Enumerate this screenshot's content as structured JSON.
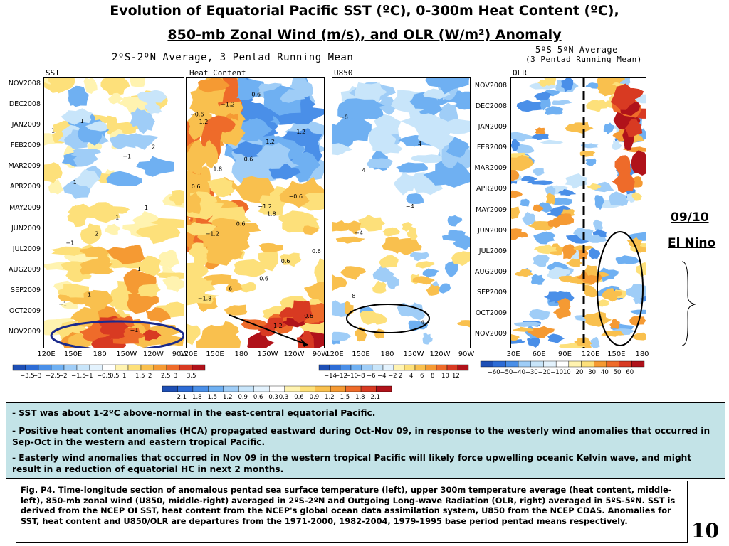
{
  "slide": {
    "title_line1": "Evolution of Equatorial Pacific SST (ºC), 0-300m Heat Content (ºC),",
    "title_line2": "850-mb Zonal Wind (m/s), and OLR (W/m²) Anomaly",
    "page_number": "10"
  },
  "left_subtitle": "2ºS-2ºN Average, 3 Pentad Running Mean",
  "right_subtitle_line1": "5ºS-5ºN Average",
  "right_subtitle_line2": "(3 Pentad Running Mean)",
  "el_nino_year": "09/10",
  "el_nino_label": "El Nino",
  "chart_data": [
    {
      "type": "heatmap",
      "title": "SST",
      "y_ticks": [
        "NOV2008",
        "DEC2008",
        "JAN2009",
        "FEB2009",
        "MAR2009",
        "APR2009",
        "MAY2009",
        "JUN2009",
        "JUL2009",
        "AUG2009",
        "SEP2009",
        "OCT2009",
        "NOV2009"
      ],
      "x_ticks": [
        "120E",
        "150E",
        "180",
        "150W",
        "120W",
        "90W"
      ],
      "colorbar": [
        "−3.5",
        "−3",
        "−2.5",
        "−2",
        "−1.5",
        "−1",
        "−0.5",
        "0.5",
        "1",
        "1.5",
        "2",
        "2.5",
        "3",
        "3.5"
      ],
      "contour_labels": [
        "1",
        "1",
        "−1",
        "−1",
        "−1",
        "−1",
        "1",
        "1",
        "1",
        "1",
        "1",
        "2",
        "2"
      ],
      "colors": [
        "#1e4fb5",
        "#2d6cd6",
        "#4a8fe8",
        "#6fb0f2",
        "#9fcdf7",
        "#c8e5fa",
        "#e3f2fd",
        "#ffffff",
        "#fff3b0",
        "#fde07a",
        "#f9c04e",
        "#f59a33",
        "#ee6b2a",
        "#d83a22",
        "#b0121a"
      ]
    },
    {
      "type": "heatmap",
      "title": "Heat Content",
      "x_ticks": [
        "120E",
        "150E",
        "180",
        "150W",
        "120W",
        "90W"
      ],
      "colorbar": [
        "−2.1",
        "−1.8",
        "−1.5",
        "−1.2",
        "−0.9",
        "−0.6",
        "−0.3",
        "0.3",
        "0.6",
        "0.9",
        "1.2",
        "1.5",
        "1.8",
        "2.1"
      ],
      "contour_labels": [
        "−0.6",
        "−1.2",
        "−1.8",
        "1.2",
        "−1.2",
        "1.2",
        "1.8",
        "0.6",
        "−1.2",
        "−0.6",
        "6",
        "1.2",
        "0.6",
        "0.6",
        "0.6",
        "0.6",
        "0.6",
        "0.6",
        "0.6",
        "1.2",
        "1.8"
      ]
    },
    {
      "type": "heatmap",
      "title": "U850",
      "x_ticks": [
        "120E",
        "150E",
        "180",
        "150W",
        "120W",
        "90W"
      ],
      "colorbar": [
        "−14",
        "−12",
        "−10",
        "−8",
        "−6",
        "−4",
        "−2",
        "2",
        "4",
        "6",
        "8",
        "10",
        "12"
      ],
      "contour_labels": [
        "−8",
        "−4",
        "−8",
        "−4",
        "−4",
        "4",
        "4"
      ]
    },
    {
      "type": "heatmap",
      "title": "OLR",
      "y_ticks": [
        "NOV2008",
        "DEC2008",
        "JAN2009",
        "FEB2009",
        "MAR2009",
        "APR2009",
        "MAY2009",
        "JUN2009",
        "JUL2009",
        "AUG2009",
        "SEP2009",
        "OCT2009",
        "NOV2009"
      ],
      "x_ticks": [
        "30E",
        "60E",
        "90E",
        "120E",
        "150E",
        "180"
      ],
      "colorbar": [
        "−60",
        "−50",
        "−40",
        "−30",
        "−20",
        "−10",
        "10",
        "20",
        "30",
        "40",
        "50",
        "60"
      ]
    }
  ],
  "bullets": [
    "- SST was about 1-2ºC above-normal in the east-central equatorial Pacific.",
    "- Positive heat content anomalies (HCA) propagated eastward during Oct-Nov 09, in response to the westerly wind anomalies that occurred in Sep-Oct  in the western and eastern tropical Pacific.",
    "- Easterly wind anomalies that occurred in Nov 09 in the western tropical Pacific will likely force upwelling oceanic Kelvin wave, and might result in a reduction of equatorial HC in next  2 months."
  ],
  "caption": "Fig. P4. Time-longitude section of anomalous pentad sea surface temperature (left), upper 300m temperature average (heat content, middle-left), 850-mb zonal wind (U850, middle-right) averaged in 2ºS-2ºN and Outgoing Long-wave Radiation (OLR, right) averaged in 5ºS-5ºN. SST is derived from the NCEP OI SST, heat content from the NCEP's global ocean data assimilation system, U850 from the NCEP CDAS. Anomalies for SST, heat content and U850/OLR are departures from the 1971-2000, 1982-2004, 1979-1995 base period pentad means respectively."
}
